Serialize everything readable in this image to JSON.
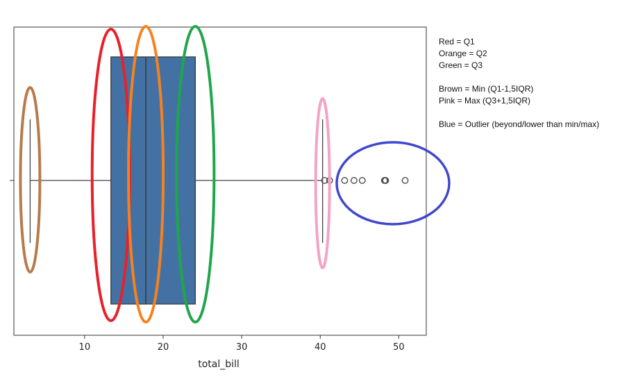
{
  "chart_data": {
    "type": "box",
    "xlabel": "total_bill",
    "ylabel": "",
    "xlim": [
      1.0,
      53.5
    ],
    "xticks": [
      10,
      20,
      30,
      40,
      50
    ],
    "grid": false,
    "box": {
      "q1": 13.35,
      "median": 17.8,
      "q3": 24.1,
      "whisker_low": 3.07,
      "whisker_high": 40.3,
      "outliers": [
        40.55,
        41.19,
        43.11,
        44.3,
        45.35,
        48.17,
        48.27,
        48.33,
        50.81
      ],
      "color": "#4471a3"
    },
    "annotations": [
      {
        "name": "Red",
        "color": "#e8202a",
        "x": 13.35
      },
      {
        "name": "Orange",
        "color": "#f58220",
        "x": 17.8
      },
      {
        "name": "Green",
        "color": "#1fa64b",
        "x": 24.1
      },
      {
        "name": "Brown",
        "color": "#b87a4b",
        "x": 3.07
      },
      {
        "name": "Pink",
        "color": "#f4a3c4",
        "x": 40.3
      },
      {
        "name": "Blue",
        "color": "#3f48cc",
        "x": 48.0
      }
    ]
  },
  "legend_lines": [
    "Red = Q1",
    "Orange = Q2",
    "Green = Q3",
    "",
    "Brown = Min (Q1-1,5IQR)",
    "Pink = Max (Q3+1,5IQR)",
    "",
    "Blue = Outlier (beyond/lower than min/max)"
  ]
}
